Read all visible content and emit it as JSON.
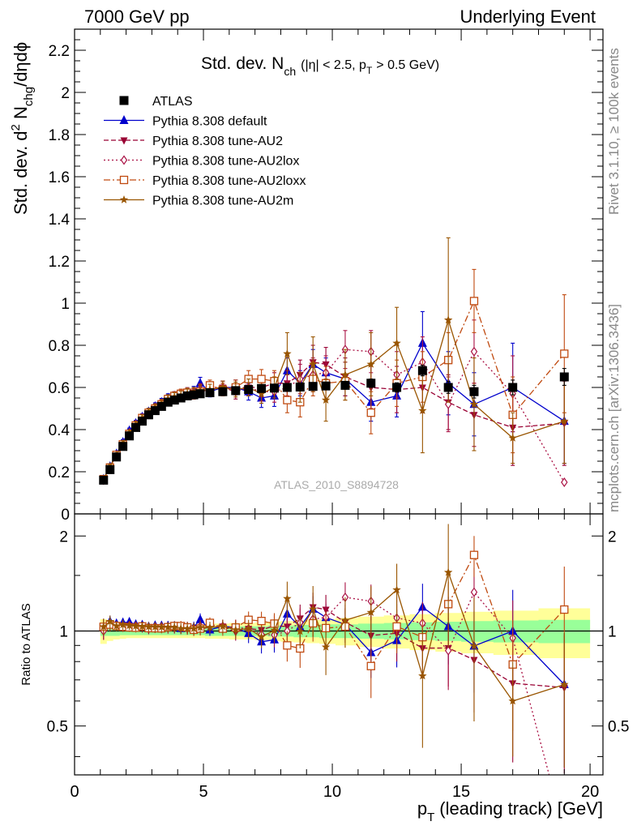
{
  "header": {
    "left": "7000 GeV pp",
    "right": "Underlying Event"
  },
  "side_labels": {
    "rivet": "Rivet 3.1.10, ≥ 100k events",
    "mcplots": "mcplots.cern.ch [arXiv:1306.3436]"
  },
  "colors": {
    "ATLAS": "#000000",
    "default": "#0000cc",
    "AU2": "#990033",
    "AU2lox": "#aa1144",
    "AU2loxx": "#c04a10",
    "AU2m": "#995500",
    "band_inner": "#99ff99",
    "band_outer": "#ffff99"
  },
  "chart_data": [
    {
      "type": "scatter",
      "panel": "main",
      "title": "Std. dev. N",
      "title_sub": "ch",
      "title_rest": "(|η| < 2.5, p",
      "title_rest_sub": "T",
      "title_rest_end": "> 0.5 GeV)",
      "ylabel_parts": [
        "Std. dev. d",
        "2",
        " N",
        "chg",
        "/dηdϕ"
      ],
      "watermark": "ATLAS_2010_S8894728",
      "xlim": [
        0,
        20.5
      ],
      "ylim": [
        0,
        2.3
      ],
      "yticks": [
        0,
        0.2,
        0.4,
        0.6,
        0.8,
        1,
        1.2,
        1.4,
        1.6,
        1.8,
        2,
        2.2
      ],
      "ytick_labels": [
        "0",
        "0.2",
        "0.4",
        "0.6",
        "0.8",
        "1",
        "1.2",
        "1.4",
        "1.6",
        "1.8",
        "2",
        "2.2"
      ],
      "x": [
        1.125,
        1.375,
        1.625,
        1.875,
        2.125,
        2.375,
        2.625,
        2.875,
        3.125,
        3.375,
        3.625,
        3.875,
        4.125,
        4.375,
        4.625,
        4.875,
        5.25,
        5.75,
        6.25,
        6.75,
        7.25,
        7.75,
        8.25,
        8.75,
        9.25,
        9.75,
        10.5,
        11.5,
        12.5,
        13.5,
        14.5,
        15.5,
        17,
        19
      ],
      "legend": {
        "placement": "top-left"
      },
      "series": [
        {
          "name": "ATLAS",
          "key": "ATLAS",
          "marker": "square",
          "line": "none",
          "values": [
            0.16,
            0.21,
            0.27,
            0.32,
            0.37,
            0.41,
            0.44,
            0.47,
            0.49,
            0.51,
            0.53,
            0.54,
            0.55,
            0.56,
            0.565,
            0.57,
            0.575,
            0.58,
            0.585,
            0.59,
            0.595,
            0.597,
            0.6,
            0.602,
            0.605,
            0.607,
            0.61,
            0.62,
            0.6,
            0.68,
            0.6,
            0.58,
            0.6,
            0.65
          ],
          "errors": [
            0.005,
            0.005,
            0.005,
            0.005,
            0.005,
            0.005,
            0.005,
            0.005,
            0.005,
            0.006,
            0.006,
            0.006,
            0.007,
            0.007,
            0.008,
            0.008,
            0.008,
            0.009,
            0.01,
            0.011,
            0.012,
            0.013,
            0.014,
            0.015,
            0.016,
            0.017,
            0.018,
            0.02,
            0.022,
            0.025,
            0.028,
            0.03,
            0.035,
            0.04
          ]
        },
        {
          "name": "Pythia 8.308 default",
          "key": "default",
          "marker": "triangle-up",
          "line": "solid",
          "values": [
            0.165,
            0.225,
            0.285,
            0.34,
            0.395,
            0.43,
            0.46,
            0.485,
            0.51,
            0.53,
            0.55,
            0.56,
            0.56,
            0.575,
            0.58,
            0.62,
            0.58,
            0.6,
            0.6,
            0.58,
            0.55,
            0.56,
            0.68,
            0.62,
            0.71,
            0.67,
            0.64,
            0.53,
            0.56,
            0.81,
            0.62,
            0.52,
            0.6,
            0.44
          ],
          "errors": [
            0.01,
            0.01,
            0.01,
            0.012,
            0.012,
            0.014,
            0.015,
            0.016,
            0.017,
            0.018,
            0.02,
            0.02,
            0.022,
            0.024,
            0.025,
            0.028,
            0.025,
            0.03,
            0.035,
            0.04,
            0.045,
            0.05,
            0.06,
            0.06,
            0.07,
            0.07,
            0.08,
            0.09,
            0.1,
            0.15,
            0.15,
            0.15,
            0.21,
            0.2
          ]
        },
        {
          "name": "Pythia 8.308 tune-AU2",
          "key": "AU2",
          "marker": "triangle-down",
          "line": "dashed",
          "values": [
            0.16,
            0.22,
            0.28,
            0.33,
            0.38,
            0.42,
            0.45,
            0.475,
            0.5,
            0.52,
            0.54,
            0.55,
            0.56,
            0.57,
            0.57,
            0.58,
            0.59,
            0.6,
            0.58,
            0.6,
            0.6,
            0.62,
            0.62,
            0.66,
            0.72,
            0.71,
            0.65,
            0.6,
            0.59,
            0.6,
            0.53,
            0.47,
            0.41,
            0.43
          ],
          "errors": [
            0.01,
            0.01,
            0.01,
            0.012,
            0.012,
            0.014,
            0.015,
            0.016,
            0.017,
            0.018,
            0.02,
            0.02,
            0.022,
            0.024,
            0.025,
            0.028,
            0.025,
            0.03,
            0.035,
            0.04,
            0.045,
            0.05,
            0.06,
            0.07,
            0.08,
            0.08,
            0.09,
            0.1,
            0.11,
            0.12,
            0.13,
            0.15,
            0.18,
            0.2
          ]
        },
        {
          "name": "Pythia 8.308 tune-AU2lox",
          "key": "AU2lox",
          "marker": "diamond",
          "line": "dotted",
          "values": [
            0.16,
            0.22,
            0.28,
            0.33,
            0.385,
            0.425,
            0.455,
            0.48,
            0.505,
            0.525,
            0.545,
            0.555,
            0.565,
            0.57,
            0.575,
            0.59,
            0.6,
            0.6,
            0.6,
            0.6,
            0.58,
            0.58,
            0.6,
            0.64,
            0.66,
            0.67,
            0.78,
            0.77,
            0.66,
            0.72,
            0.52,
            0.77,
            0.57,
            0.15
          ],
          "errors": [
            0.01,
            0.01,
            0.01,
            0.012,
            0.012,
            0.014,
            0.015,
            0.016,
            0.017,
            0.018,
            0.02,
            0.02,
            0.022,
            0.024,
            0.025,
            0.028,
            0.025,
            0.03,
            0.035,
            0.04,
            0.045,
            0.05,
            0.06,
            0.07,
            0.08,
            0.08,
            0.09,
            0.1,
            0.11,
            0.12,
            0.13,
            0.15,
            0.18,
            0.0
          ]
        },
        {
          "name": "Pythia 8.308 tune-AU2loxx",
          "key": "AU2loxx",
          "marker": "open-square",
          "line": "dashdot",
          "values": [
            0.165,
            0.22,
            0.28,
            0.33,
            0.38,
            0.42,
            0.455,
            0.48,
            0.5,
            0.52,
            0.545,
            0.56,
            0.57,
            0.575,
            0.57,
            0.58,
            0.61,
            0.59,
            0.6,
            0.64,
            0.64,
            0.63,
            0.54,
            0.53,
            0.64,
            0.62,
            0.63,
            0.48,
            0.62,
            0.65,
            0.73,
            1.01,
            0.47,
            0.76
          ],
          "errors": [
            0.01,
            0.01,
            0.01,
            0.012,
            0.012,
            0.014,
            0.015,
            0.016,
            0.017,
            0.018,
            0.02,
            0.02,
            0.022,
            0.024,
            0.025,
            0.028,
            0.025,
            0.03,
            0.035,
            0.04,
            0.045,
            0.05,
            0.06,
            0.07,
            0.08,
            0.08,
            0.09,
            0.1,
            0.11,
            0.12,
            0.13,
            0.15,
            0.18,
            0.28
          ]
        },
        {
          "name": "Pythia 8.308 tune-AU2m",
          "key": "AU2m",
          "marker": "star",
          "line": "solid",
          "values": [
            0.165,
            0.225,
            0.28,
            0.335,
            0.385,
            0.425,
            0.455,
            0.485,
            0.505,
            0.525,
            0.545,
            0.555,
            0.56,
            0.57,
            0.575,
            0.585,
            0.59,
            0.6,
            0.59,
            0.6,
            0.57,
            0.6,
            0.76,
            0.6,
            0.71,
            0.54,
            0.66,
            0.71,
            0.81,
            0.49,
            0.92,
            0.52,
            0.36,
            0.44
          ],
          "errors": [
            0.01,
            0.01,
            0.01,
            0.012,
            0.012,
            0.014,
            0.015,
            0.016,
            0.017,
            0.018,
            0.02,
            0.02,
            0.022,
            0.024,
            0.025,
            0.028,
            0.025,
            0.03,
            0.035,
            0.04,
            0.045,
            0.05,
            0.1,
            0.07,
            0.13,
            0.1,
            0.12,
            0.15,
            0.17,
            0.2,
            0.39,
            0.22,
            0.12,
            0.2
          ]
        }
      ]
    },
    {
      "type": "scatter",
      "panel": "ratio",
      "ylabel": "Ratio to ATLAS",
      "xlabel_main": "p",
      "xlabel_sub": "T",
      "xlabel_rest": "(leading track) [GeV]",
      "xlim": [
        0,
        20.5
      ],
      "ylim": [
        0.35,
        2.35
      ],
      "log_y": true,
      "yticks": [
        0.5,
        1,
        2
      ],
      "ytick_labels": [
        "0.5",
        "1",
        "2"
      ],
      "xticks": [
        0,
        5,
        10,
        15,
        20
      ],
      "xtick_labels": [
        "0",
        "5",
        "10",
        "15",
        "20"
      ],
      "reference_line": 1,
      "band_inner": [
        0.035,
        0.035,
        0.035,
        0.03,
        0.03,
        0.03,
        0.03,
        0.03,
        0.03,
        0.03,
        0.03,
        0.03,
        0.03,
        0.03,
        0.03,
        0.03,
        0.035,
        0.035,
        0.035,
        0.035,
        0.035,
        0.04,
        0.04,
        0.045,
        0.045,
        0.05,
        0.05,
        0.055,
        0.06,
        0.065,
        0.07,
        0.075,
        0.08,
        0.085
      ],
      "band_outer": [
        0.09,
        0.07,
        0.06,
        0.055,
        0.05,
        0.05,
        0.05,
        0.05,
        0.05,
        0.05,
        0.05,
        0.05,
        0.05,
        0.05,
        0.05,
        0.05,
        0.055,
        0.055,
        0.06,
        0.06,
        0.065,
        0.07,
        0.075,
        0.08,
        0.085,
        0.09,
        0.1,
        0.11,
        0.12,
        0.13,
        0.14,
        0.15,
        0.16,
        0.18
      ]
    }
  ]
}
